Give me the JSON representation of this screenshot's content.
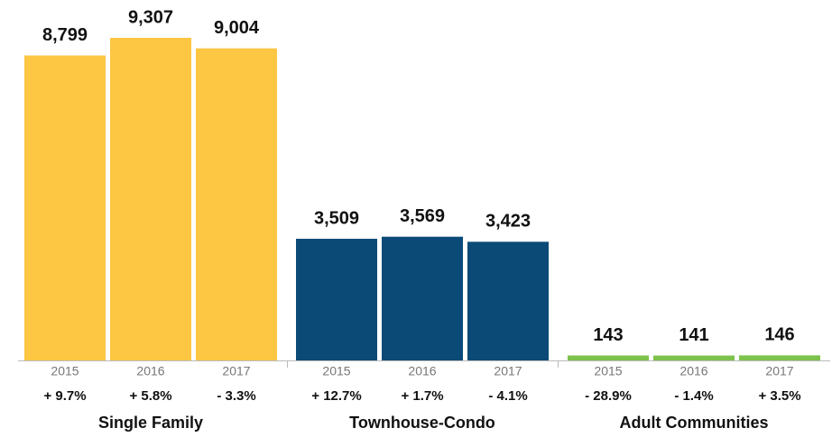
{
  "chart_data": {
    "type": "bar",
    "groups": [
      {
        "name": "Single Family",
        "color": "#fdc643",
        "categories": [
          "2015",
          "2016",
          "2017"
        ],
        "values": [
          8799,
          9307,
          9004
        ],
        "value_labels": [
          "8,799",
          "9,307",
          "9,004"
        ],
        "changes": [
          "+ 9.7%",
          "+ 5.8%",
          "- 3.3%"
        ]
      },
      {
        "name": "Townhouse-Condo",
        "color": "#0b4a76",
        "categories": [
          "2015",
          "2016",
          "2017"
        ],
        "values": [
          3509,
          3569,
          3423
        ],
        "value_labels": [
          "3,509",
          "3,569",
          "3,423"
        ],
        "changes": [
          "+ 12.7%",
          "+ 1.7%",
          "- 4.1%"
        ]
      },
      {
        "name": "Adult Communities",
        "color": "#7dc24b",
        "categories": [
          "2015",
          "2016",
          "2017"
        ],
        "values": [
          143,
          141,
          146
        ],
        "value_labels": [
          "143",
          "141",
          "146"
        ],
        "changes": [
          "- 28.9%",
          "- 1.4%",
          "+ 3.5%"
        ]
      }
    ]
  }
}
